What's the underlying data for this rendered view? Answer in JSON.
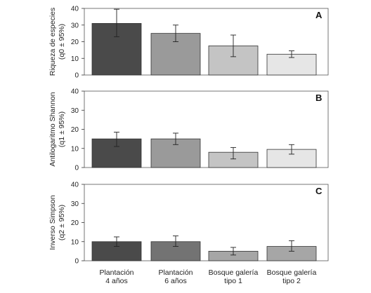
{
  "chart_data": [
    {
      "type": "bar",
      "panel": "A",
      "ylabel": [
        "Riqueza de especies",
        "(q0 ± 95%)"
      ],
      "ylim": [
        0,
        40
      ],
      "yticks": [
        0,
        10,
        20,
        30,
        40
      ],
      "categories": [
        "Plantación 4 años",
        "Plantación 6 años",
        "Bosque galería tipo 1",
        "Bosque galería tipo 2"
      ],
      "values": [
        31,
        25,
        17.5,
        12.5
      ],
      "err_low": [
        23,
        20,
        11,
        10.5
      ],
      "err_high": [
        39.5,
        30,
        24,
        14.5
      ],
      "colors": [
        "#4a4a4a",
        "#9a9a9a",
        "#c4c4c4",
        "#e6e6e6"
      ]
    },
    {
      "type": "bar",
      "panel": "B",
      "ylabel": [
        "Antilogaritmo Shannon",
        "(q1 ± 95%)"
      ],
      "ylim": [
        0,
        40
      ],
      "yticks": [
        0,
        10,
        20,
        30,
        40
      ],
      "categories": [
        "Plantación 4 años",
        "Plantación 6 años",
        "Bosque galería tipo 1",
        "Bosque galería tipo 2"
      ],
      "values": [
        15,
        15,
        8,
        9.5
      ],
      "err_low": [
        11,
        12,
        4.5,
        7
      ],
      "err_high": [
        18.5,
        18,
        10.5,
        12
      ],
      "colors": [
        "#4a4a4a",
        "#9a9a9a",
        "#c4c4c4",
        "#e6e6e6"
      ]
    },
    {
      "type": "bar",
      "panel": "C",
      "ylabel": [
        "Inverso Simpson",
        "(q2 ± 95%)"
      ],
      "ylim": [
        0,
        40
      ],
      "yticks": [
        0,
        10,
        20,
        30,
        40
      ],
      "categories": [
        "Plantación 4 años",
        "Plantación 6 años",
        "Bosque galería tipo 1",
        "Bosque galería tipo 2"
      ],
      "values": [
        10,
        10,
        5,
        7.5
      ],
      "err_low": [
        7.5,
        7.5,
        3,
        5
      ],
      "err_high": [
        12.5,
        13,
        7,
        10.5
      ],
      "colors": [
        "#4a4a4a",
        "#737373",
        "#a6a6a6",
        "#a6a6a6"
      ]
    }
  ],
  "category_labels": [
    [
      "Plantación",
      "4 años"
    ],
    [
      "Plantación",
      "6 años"
    ],
    [
      "Bosque galería",
      "tipo 1"
    ],
    [
      "Bosque galería",
      "tipo 2"
    ]
  ]
}
